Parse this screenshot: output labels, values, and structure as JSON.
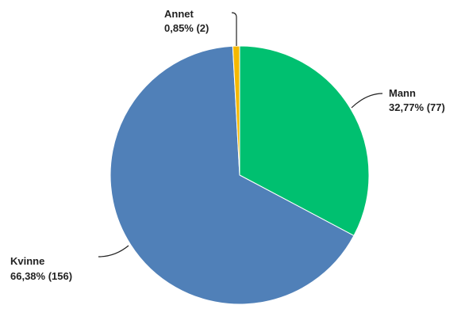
{
  "chart_data": {
    "type": "pie",
    "title": "",
    "slices": [
      {
        "name": "Mann",
        "percent_label": "32,77% (77)",
        "value": 77,
        "color": "#00c070"
      },
      {
        "name": "Kvinne",
        "percent_label": "66,38% (156)",
        "value": 156,
        "color": "#5080b8"
      },
      {
        "name": "Annet",
        "percent_label": "0,85% (2)",
        "value": 2,
        "color": "#f5b800"
      }
    ],
    "start": "12 o'clock",
    "direction": "clockwise"
  }
}
